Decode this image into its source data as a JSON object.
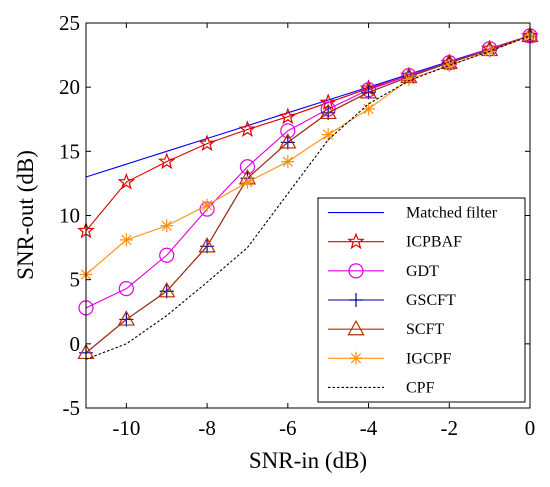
{
  "chart_data": {
    "type": "line",
    "xlabel": "SNR-in (dB)",
    "ylabel": "SNR-out (dB)",
    "xlim": [
      -11,
      0
    ],
    "ylim": [
      -5,
      25
    ],
    "xticks": [
      -10,
      -8,
      -6,
      -4,
      -2,
      0
    ],
    "yticks": [
      -5,
      0,
      5,
      10,
      15,
      20,
      25
    ],
    "grid": false,
    "legend_placement": "bottom-right",
    "x": [
      -11,
      -10,
      -9,
      -8,
      -7,
      -6,
      -5,
      -4,
      -3,
      -2,
      -1,
      0
    ],
    "series": [
      {
        "name": "Matched filter",
        "color": "#0000ff",
        "marker": "none",
        "dash": "solid",
        "values": [
          13.0,
          14.0,
          15.0,
          16.0,
          17.0,
          18.0,
          19.0,
          20.0,
          21.0,
          22.0,
          23.0,
          24.0
        ]
      },
      {
        "name": "ICPBAF",
        "color": "#e00000",
        "marker": "star",
        "dash": "solid",
        "values": [
          8.8,
          12.6,
          14.2,
          15.6,
          16.7,
          17.7,
          18.8,
          19.9,
          20.9,
          21.9,
          23.0,
          24.0
        ]
      },
      {
        "name": "GDT",
        "color": "#e000e0",
        "marker": "circle",
        "dash": "solid",
        "values": [
          2.8,
          4.3,
          6.9,
          10.5,
          13.8,
          16.6,
          18.3,
          19.8,
          20.9,
          21.9,
          23.0,
          24.0
        ]
      },
      {
        "name": "GSCFT",
        "color": "#0000b0",
        "marker": "plus",
        "dash": "solid",
        "values": [
          -0.7,
          1.9,
          4.1,
          7.6,
          12.9,
          15.7,
          18.0,
          19.6,
          20.8,
          21.9,
          22.9,
          24.0
        ]
      },
      {
        "name": "SCFT",
        "color": "#b03000",
        "marker": "triangle",
        "dash": "solid",
        "values": [
          -0.7,
          1.9,
          4.1,
          7.6,
          12.9,
          15.7,
          18.0,
          19.6,
          20.8,
          21.9,
          22.9,
          24.0
        ]
      },
      {
        "name": "IGCPF",
        "color": "#ff9010",
        "marker": "asterisk",
        "dash": "solid",
        "values": [
          5.4,
          8.1,
          9.2,
          10.8,
          12.6,
          14.2,
          16.3,
          18.3,
          20.6,
          21.7,
          22.8,
          24.0
        ]
      },
      {
        "name": "CPF",
        "color": "#000000",
        "marker": "none",
        "dash": "dotted",
        "values": [
          -1.2,
          0.0,
          2.2,
          4.8,
          7.5,
          11.7,
          15.9,
          18.7,
          20.5,
          21.7,
          22.8,
          24.0
        ]
      }
    ]
  }
}
